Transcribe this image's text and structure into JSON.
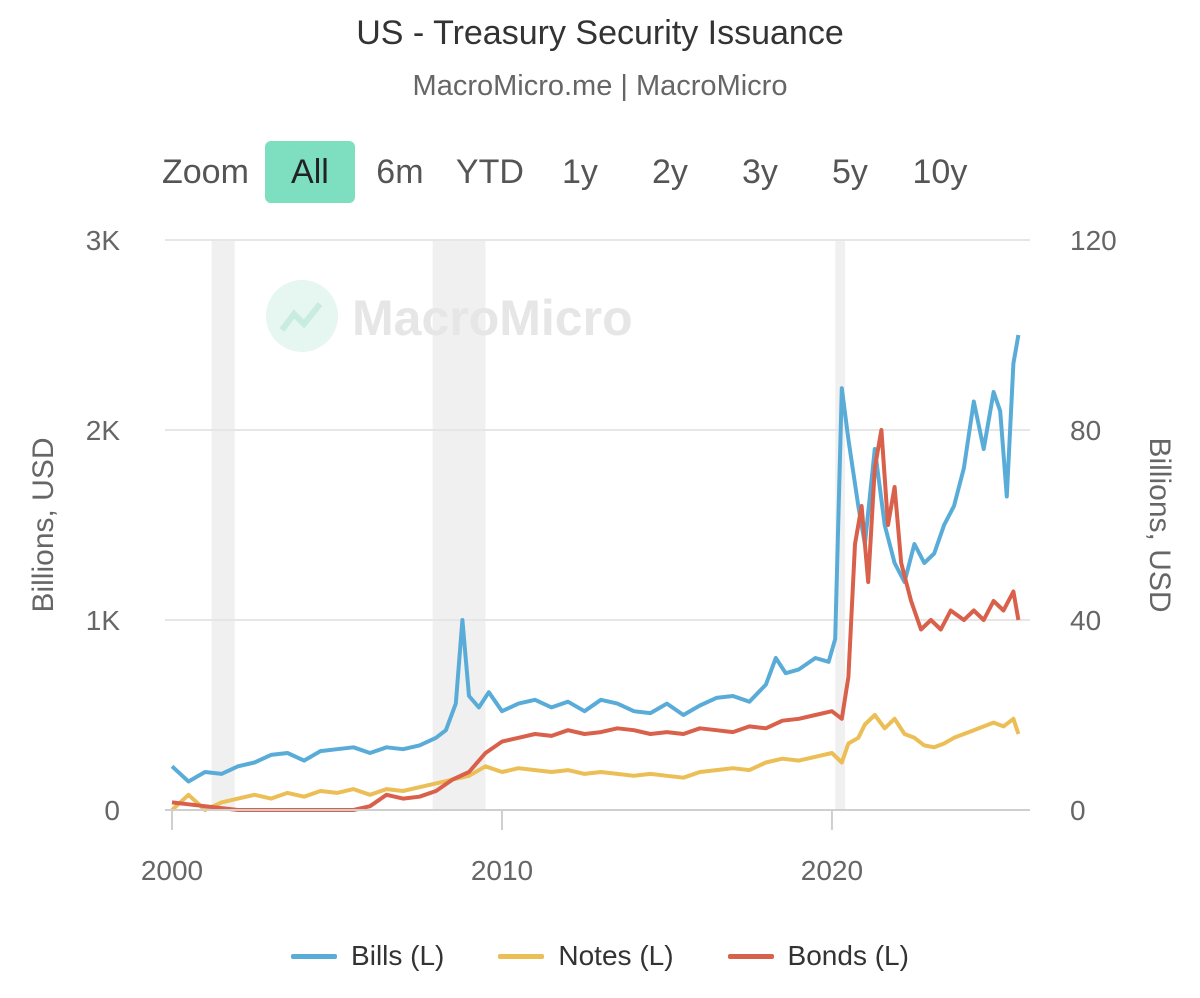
{
  "header": {
    "title": "US - Treasury Security Issuance",
    "subtitle": "MacroMicro.me | MacroMicro"
  },
  "zoom": {
    "label": "Zoom",
    "buttons": [
      "All",
      "6m",
      "YTD",
      "1y",
      "2y",
      "3y",
      "5y",
      "10y"
    ],
    "active": "All"
  },
  "watermark": {
    "text": "MacroMicro",
    "icon": "macromicro-logo-icon"
  },
  "colors": {
    "bills": "#5aacd8",
    "notes": "#ebbe56",
    "bonds": "#d9604a",
    "recession": "#f0f0f0",
    "grid": "#e6e6e6"
  },
  "chart_data": {
    "type": "line",
    "title": "US - Treasury Security Issuance",
    "xlabel": "",
    "ylabel": "Billions, USD",
    "ylabel_right": "Billions, USD",
    "xlim": [
      2000,
      2025.7
    ],
    "ylim": [
      0,
      3000
    ],
    "ylim_right": [
      0,
      120
    ],
    "x_ticks": [
      2000,
      2010,
      2020
    ],
    "y_ticks": [
      0,
      1000,
      2000,
      3000
    ],
    "y_tick_labels": [
      "0",
      "1K",
      "2K",
      "3K"
    ],
    "y_right_ticks": [
      0,
      40,
      80,
      120
    ],
    "y_right_tick_labels": [
      "0",
      "40",
      "80",
      "120"
    ],
    "recessions": [
      [
        2001.2,
        2001.9
      ],
      [
        2007.9,
        2009.5
      ],
      [
        2020.1,
        2020.4
      ]
    ],
    "legend": [
      "Bills (L)",
      "Notes (L)",
      "Bonds (L)"
    ],
    "legend_position": "bottom-center",
    "series": [
      {
        "name": "Bills (L)",
        "color": "#5aacd8",
        "points": [
          [
            2000.0,
            230
          ],
          [
            2000.5,
            150
          ],
          [
            2001.0,
            200
          ],
          [
            2001.5,
            190
          ],
          [
            2002.0,
            230
          ],
          [
            2002.5,
            250
          ],
          [
            2003.0,
            290
          ],
          [
            2003.5,
            300
          ],
          [
            2004.0,
            260
          ],
          [
            2004.5,
            310
          ],
          [
            2005.0,
            320
          ],
          [
            2005.5,
            330
          ],
          [
            2006.0,
            300
          ],
          [
            2006.5,
            330
          ],
          [
            2007.0,
            320
          ],
          [
            2007.5,
            340
          ],
          [
            2008.0,
            380
          ],
          [
            2008.3,
            420
          ],
          [
            2008.6,
            560
          ],
          [
            2008.8,
            1000
          ],
          [
            2009.0,
            600
          ],
          [
            2009.3,
            540
          ],
          [
            2009.6,
            620
          ],
          [
            2010.0,
            520
          ],
          [
            2010.5,
            560
          ],
          [
            2011.0,
            580
          ],
          [
            2011.5,
            540
          ],
          [
            2012.0,
            570
          ],
          [
            2012.5,
            520
          ],
          [
            2013.0,
            580
          ],
          [
            2013.5,
            560
          ],
          [
            2014.0,
            520
          ],
          [
            2014.5,
            510
          ],
          [
            2015.0,
            560
          ],
          [
            2015.5,
            500
          ],
          [
            2016.0,
            550
          ],
          [
            2016.5,
            590
          ],
          [
            2017.0,
            600
          ],
          [
            2017.5,
            570
          ],
          [
            2018.0,
            660
          ],
          [
            2018.3,
            800
          ],
          [
            2018.6,
            720
          ],
          [
            2019.0,
            740
          ],
          [
            2019.5,
            800
          ],
          [
            2019.9,
            780
          ],
          [
            2020.1,
            900
          ],
          [
            2020.3,
            2220
          ],
          [
            2020.5,
            1950
          ],
          [
            2020.8,
            1600
          ],
          [
            2021.0,
            1400
          ],
          [
            2021.3,
            1900
          ],
          [
            2021.6,
            1500
          ],
          [
            2021.9,
            1300
          ],
          [
            2022.2,
            1200
          ],
          [
            2022.5,
            1400
          ],
          [
            2022.8,
            1300
          ],
          [
            2023.1,
            1350
          ],
          [
            2023.4,
            1500
          ],
          [
            2023.7,
            1600
          ],
          [
            2024.0,
            1800
          ],
          [
            2024.3,
            2150
          ],
          [
            2024.6,
            1900
          ],
          [
            2024.9,
            2200
          ],
          [
            2025.1,
            2100
          ],
          [
            2025.3,
            1650
          ],
          [
            2025.5,
            2350
          ],
          [
            2025.65,
            2500
          ]
        ]
      },
      {
        "name": "Notes (L)",
        "color": "#ebbe56",
        "points": [
          [
            2000.0,
            0
          ],
          [
            2000.5,
            80
          ],
          [
            2001.0,
            0
          ],
          [
            2001.5,
            40
          ],
          [
            2002.0,
            60
          ],
          [
            2002.5,
            80
          ],
          [
            2003.0,
            60
          ],
          [
            2003.5,
            90
          ],
          [
            2004.0,
            70
          ],
          [
            2004.5,
            100
          ],
          [
            2005.0,
            90
          ],
          [
            2005.5,
            110
          ],
          [
            2006.0,
            80
          ],
          [
            2006.5,
            110
          ],
          [
            2007.0,
            100
          ],
          [
            2007.5,
            120
          ],
          [
            2008.0,
            140
          ],
          [
            2008.5,
            160
          ],
          [
            2009.0,
            180
          ],
          [
            2009.5,
            230
          ],
          [
            2010.0,
            200
          ],
          [
            2010.5,
            220
          ],
          [
            2011.0,
            210
          ],
          [
            2011.5,
            200
          ],
          [
            2012.0,
            210
          ],
          [
            2012.5,
            190
          ],
          [
            2013.0,
            200
          ],
          [
            2013.5,
            190
          ],
          [
            2014.0,
            180
          ],
          [
            2014.5,
            190
          ],
          [
            2015.0,
            180
          ],
          [
            2015.5,
            170
          ],
          [
            2016.0,
            200
          ],
          [
            2016.5,
            210
          ],
          [
            2017.0,
            220
          ],
          [
            2017.5,
            210
          ],
          [
            2018.0,
            250
          ],
          [
            2018.5,
            270
          ],
          [
            2019.0,
            260
          ],
          [
            2019.5,
            280
          ],
          [
            2020.0,
            300
          ],
          [
            2020.3,
            250
          ],
          [
            2020.5,
            350
          ],
          [
            2020.8,
            380
          ],
          [
            2021.0,
            450
          ],
          [
            2021.3,
            500
          ],
          [
            2021.6,
            430
          ],
          [
            2021.9,
            480
          ],
          [
            2022.2,
            400
          ],
          [
            2022.5,
            380
          ],
          [
            2022.8,
            340
          ],
          [
            2023.1,
            330
          ],
          [
            2023.4,
            350
          ],
          [
            2023.7,
            380
          ],
          [
            2024.0,
            400
          ],
          [
            2024.3,
            420
          ],
          [
            2024.6,
            440
          ],
          [
            2024.9,
            460
          ],
          [
            2025.2,
            440
          ],
          [
            2025.5,
            480
          ],
          [
            2025.65,
            400
          ]
        ]
      },
      {
        "name": "Bonds (L)",
        "color": "#d9604a",
        "points": [
          [
            2000.0,
            40
          ],
          [
            2000.5,
            30
          ],
          [
            2001.0,
            20
          ],
          [
            2001.5,
            10
          ],
          [
            2002.0,
            0
          ],
          [
            2002.5,
            0
          ],
          [
            2003.0,
            0
          ],
          [
            2003.5,
            0
          ],
          [
            2004.0,
            0
          ],
          [
            2004.5,
            0
          ],
          [
            2005.0,
            0
          ],
          [
            2005.5,
            0
          ],
          [
            2006.0,
            20
          ],
          [
            2006.5,
            80
          ],
          [
            2007.0,
            60
          ],
          [
            2007.5,
            70
          ],
          [
            2008.0,
            100
          ],
          [
            2008.5,
            160
          ],
          [
            2009.0,
            200
          ],
          [
            2009.5,
            300
          ],
          [
            2010.0,
            360
          ],
          [
            2010.5,
            380
          ],
          [
            2011.0,
            400
          ],
          [
            2011.5,
            390
          ],
          [
            2012.0,
            420
          ],
          [
            2012.5,
            400
          ],
          [
            2013.0,
            410
          ],
          [
            2013.5,
            430
          ],
          [
            2014.0,
            420
          ],
          [
            2014.5,
            400
          ],
          [
            2015.0,
            410
          ],
          [
            2015.5,
            400
          ],
          [
            2016.0,
            430
          ],
          [
            2016.5,
            420
          ],
          [
            2017.0,
            410
          ],
          [
            2017.5,
            440
          ],
          [
            2018.0,
            430
          ],
          [
            2018.5,
            470
          ],
          [
            2019.0,
            480
          ],
          [
            2019.5,
            500
          ],
          [
            2020.0,
            520
          ],
          [
            2020.3,
            480
          ],
          [
            2020.5,
            700
          ],
          [
            2020.7,
            1400
          ],
          [
            2020.9,
            1600
          ],
          [
            2021.1,
            1200
          ],
          [
            2021.3,
            1800
          ],
          [
            2021.5,
            2000
          ],
          [
            2021.7,
            1500
          ],
          [
            2021.9,
            1700
          ],
          [
            2022.1,
            1300
          ],
          [
            2022.4,
            1100
          ],
          [
            2022.7,
            950
          ],
          [
            2023.0,
            1000
          ],
          [
            2023.3,
            950
          ],
          [
            2023.6,
            1050
          ],
          [
            2024.0,
            1000
          ],
          [
            2024.3,
            1050
          ],
          [
            2024.6,
            1000
          ],
          [
            2024.9,
            1100
          ],
          [
            2025.2,
            1050
          ],
          [
            2025.5,
            1150
          ],
          [
            2025.65,
            1000
          ]
        ]
      }
    ]
  }
}
